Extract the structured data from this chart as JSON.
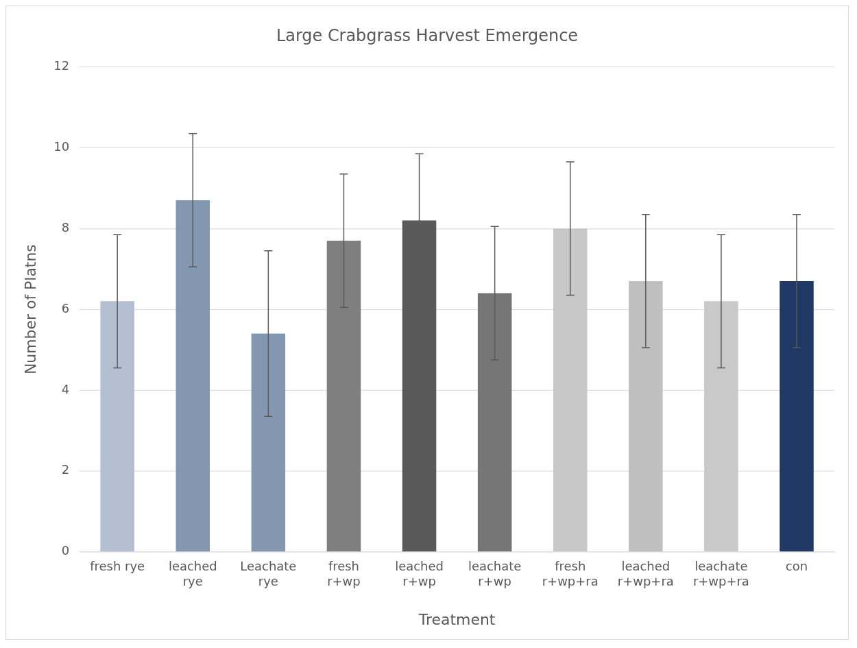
{
  "chart_data": {
    "type": "bar",
    "title": "Large Crabgrass Harvest Emergence",
    "xlabel": "Treatment",
    "ylabel": "Number of Platns",
    "categories": [
      "fresh rye",
      "leached rye",
      "Leachate rye",
      "fresh r+wp",
      "leached r+wp",
      "leachate r+wp",
      "fresh r+wp+ra",
      "leached r+wp+ra",
      "leachate r+wp+ra",
      "con"
    ],
    "values": [
      6.2,
      8.7,
      5.4,
      7.7,
      8.2,
      6.4,
      8.0,
      6.7,
      6.2,
      6.7
    ],
    "colors": [
      "#b4c0d2",
      "#8497b0",
      "#8497b0",
      "#7f7f7f",
      "#595959",
      "#767676",
      "#c8c8c8",
      "#bfbfbf",
      "#c9c9c9",
      "#1f3864"
    ],
    "errors": [
      1.65,
      1.65,
      2.05,
      1.65,
      1.65,
      1.65,
      1.65,
      1.65,
      1.65,
      1.65
    ],
    "ylim": [
      0,
      12
    ],
    "yticks": [
      0,
      2,
      4,
      6,
      8,
      10,
      12
    ],
    "grid": "y",
    "legend": false
  }
}
